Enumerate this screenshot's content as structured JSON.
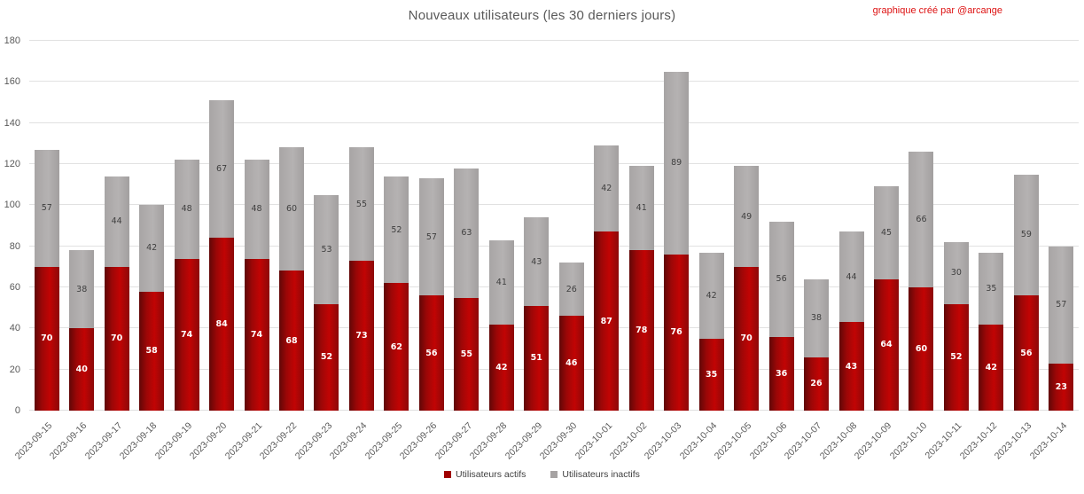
{
  "header": {
    "title": "Nouveaux utilisateurs (les 30 derniers jours)",
    "credit": "graphique créé par @arcange"
  },
  "legend": [
    {
      "label": "Utilisateurs actifs",
      "color": "#a00000"
    },
    {
      "label": "Utilisateurs inactifs",
      "color": "#a6a3a3"
    }
  ],
  "colors": {
    "title": "#595959",
    "axis_text": "#595959",
    "grid": "#e1e1e1",
    "credit": "#dd1111",
    "bar_label_light": "#ffffff",
    "bar_label_dark": "#3f3f3f",
    "active_gradient": [
      "#600707",
      "#9c0707",
      "#c10404",
      "#8c0909"
    ],
    "inactive_gradient": [
      "#a8a5a5",
      "#b5b2b2",
      "#a29f9f"
    ]
  },
  "chart_data": {
    "type": "bar",
    "stacked": true,
    "title": "Nouveaux utilisateurs (les 30 derniers jours)",
    "xlabel": "",
    "ylabel": "",
    "ylim": [
      0,
      180
    ],
    "yticks": [
      0,
      20,
      40,
      60,
      80,
      100,
      120,
      140,
      160,
      180
    ],
    "grid": true,
    "legend_position": "bottom",
    "value_labels": true,
    "categories": [
      "2023-09-15",
      "2023-09-16",
      "2023-09-17",
      "2023-09-18",
      "2023-09-19",
      "2023-09-20",
      "2023-09-21",
      "2023-09-22",
      "2023-09-23",
      "2023-09-24",
      "2023-09-25",
      "2023-09-26",
      "2023-09-27",
      "2023-09-28",
      "2023-09-29",
      "2023-09-30",
      "2023-10-01",
      "2023-10-02",
      "2023-10-03",
      "2023-10-04",
      "2023-10-05",
      "2023-10-06",
      "2023-10-07",
      "2023-10-08",
      "2023-10-09",
      "2023-10-10",
      "2023-10-11",
      "2023-10-12",
      "2023-10-13",
      "2023-10-14"
    ],
    "series": [
      {
        "name": "Utilisateurs actifs",
        "color": "#c00000",
        "values": [
          70,
          40,
          70,
          58,
          74,
          84,
          74,
          68,
          52,
          73,
          62,
          56,
          55,
          42,
          51,
          46,
          87,
          78,
          76,
          35,
          70,
          36,
          26,
          43,
          64,
          60,
          52,
          42,
          56,
          23
        ]
      },
      {
        "name": "Utilisateurs inactifs",
        "color": "#b0adad",
        "values": [
          57,
          38,
          44,
          42,
          48,
          67,
          48,
          60,
          53,
          55,
          52,
          57,
          63,
          41,
          43,
          26,
          42,
          41,
          89,
          42,
          49,
          56,
          38,
          44,
          45,
          66,
          30,
          35,
          59,
          57
        ]
      }
    ]
  }
}
